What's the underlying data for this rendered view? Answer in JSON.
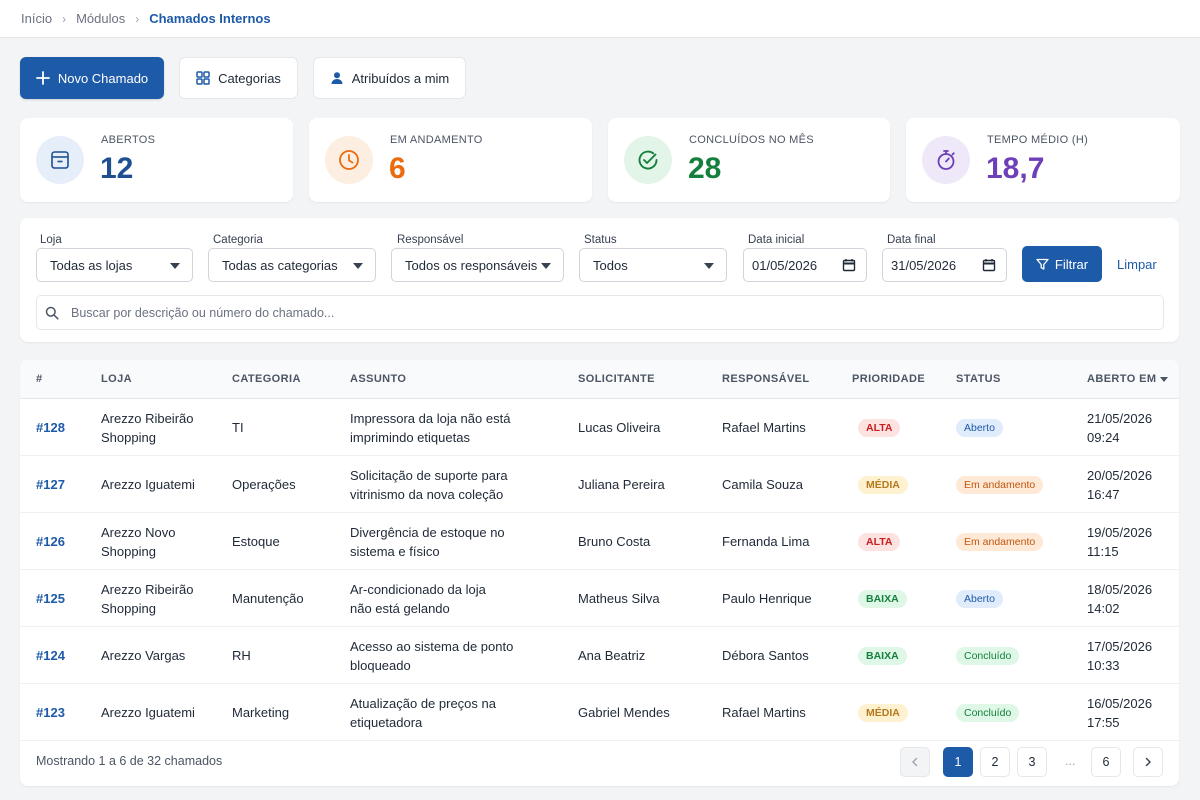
{
  "breadcrumb": [
    "Início",
    "Módulos",
    "Chamados Internos"
  ],
  "actions": {
    "new_ticket": "Novo Chamado",
    "categories": "Categorias",
    "assigned_to_me": "Atribuídos a mim"
  },
  "stats": [
    {
      "label": "ABERTOS",
      "value": "12",
      "color": "#1d4f91",
      "icon": "inbox-icon"
    },
    {
      "label": "EM ANDAMENTO",
      "value": "6",
      "color": "#ea6c0e",
      "icon": "clock-icon"
    },
    {
      "label": "CONCLUÍDOS NO MÊS",
      "value": "28",
      "color": "#15803d",
      "icon": "check-circle-icon"
    },
    {
      "label": "TEMPO MÉDIO (H)",
      "value": "18,7",
      "color": "#6d3fb8",
      "icon": "stopwatch-icon"
    }
  ],
  "filters": {
    "store": {
      "label": "Loja",
      "value": "Todas as lojas"
    },
    "category": {
      "label": "Categoria",
      "value": "Todas as categorias"
    },
    "owner": {
      "label": "Responsável",
      "value": "Todos os responsáveis"
    },
    "status": {
      "label": "Status",
      "value": "Todos"
    },
    "start_date": {
      "label": "Data inicial",
      "value": "01/05/2026"
    },
    "end_date": {
      "label": "Data final",
      "value": "31/05/2026"
    },
    "filter_button": "Filtrar",
    "clear_link": "Limpar",
    "search_placeholder": "Buscar por descrição ou número do chamado..."
  },
  "table": {
    "columns": [
      "#",
      "LOJA",
      "CATEGORIA",
      "ASSUNTO",
      "SOLICITANTE",
      "RESPONSÁVEL",
      "PRIORIDADE",
      "STATUS",
      "ABERTO EM"
    ],
    "rows": [
      {
        "id": "#128",
        "store": [
          "Arezzo Ribeirão",
          "Shopping"
        ],
        "category": "TI",
        "subject": [
          "Impressora da loja não está",
          "imprimindo etiquetas"
        ],
        "requester": "Lucas Oliveira",
        "owner": "Rafael Martins",
        "priority": "ALTA",
        "status": "Aberto",
        "opened": [
          "21/05/2026",
          "09:24"
        ]
      },
      {
        "id": "#127",
        "store": [
          "Arezzo Iguatemi"
        ],
        "category": "Operações",
        "subject": [
          "Solicitação de suporte para",
          "vitrinismo da nova coleção"
        ],
        "requester": "Juliana Pereira",
        "owner": "Camila Souza",
        "priority": "MÉDIA",
        "status": "Em andamento",
        "opened": [
          "20/05/2026",
          "16:47"
        ]
      },
      {
        "id": "#126",
        "store": [
          "Arezzo Novo",
          "Shopping"
        ],
        "category": "Estoque",
        "subject": [
          "Divergência de estoque no",
          "sistema e físico"
        ],
        "requester": "Bruno Costa",
        "owner": "Fernanda Lima",
        "priority": "ALTA",
        "status": "Em andamento",
        "opened": [
          "19/05/2026",
          "11:15"
        ]
      },
      {
        "id": "#125",
        "store": [
          "Arezzo Ribeirão",
          "Shopping"
        ],
        "category": "Manutenção",
        "subject": [
          "Ar-condicionado da loja",
          "não está gelando"
        ],
        "requester": "Matheus Silva",
        "owner": "Paulo Henrique",
        "priority": "BAIXA",
        "status": "Aberto",
        "opened": [
          "18/05/2026",
          "14:02"
        ]
      },
      {
        "id": "#124",
        "store": [
          "Arezzo Vargas"
        ],
        "category": "RH",
        "subject": [
          "Acesso ao sistema de ponto",
          "bloqueado"
        ],
        "requester": "Ana Beatriz",
        "owner": "Débora Santos",
        "priority": "BAIXA",
        "status": "Concluído",
        "opened": [
          "17/05/2026",
          "10:33"
        ]
      },
      {
        "id": "#123",
        "store": [
          "Arezzo Iguatemi"
        ],
        "category": "Marketing",
        "subject": [
          "Atualização de preços na",
          "etiquetadora"
        ],
        "requester": "Gabriel Mendes",
        "owner": "Rafael Martins",
        "priority": "MÉDIA",
        "status": "Concluído",
        "opened": [
          "16/05/2026",
          "17:55"
        ]
      }
    ]
  },
  "pagination": {
    "summary": "Mostrando 1 a 6 de 32 chamados",
    "pages": [
      "1",
      "2",
      "3",
      "6"
    ],
    "current": "1",
    "ellipsis": "..."
  }
}
